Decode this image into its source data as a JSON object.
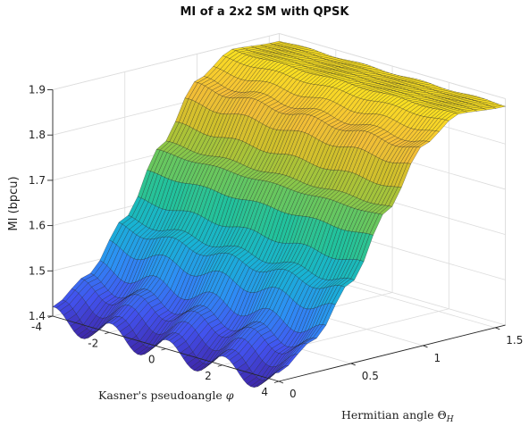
{
  "chart_data": {
    "type": "surface",
    "title": "MI of a 2x2 SM with QPSK",
    "xlabel_main": "Kasner's pseudoangle ",
    "xlabel_symbol": "φ",
    "ylabel_main": "Hermitian angle ",
    "ylabel_symbol": "Θ",
    "ylabel_sub": "H",
    "zlabel": "MI (bpcu)",
    "x_ticks": [
      "-4",
      "-2",
      "0",
      "2",
      "4"
    ],
    "y_ticks": [
      "0",
      "0.5",
      "1",
      "1.5"
    ],
    "z_ticks": [
      "1.4",
      "1.5",
      "1.6",
      "1.7",
      "1.8",
      "1.9"
    ],
    "xlim": [
      -4,
      4
    ],
    "ylim": [
      0,
      1.57
    ],
    "zlim": [
      1.4,
      1.9
    ],
    "colormap": [
      "#3e26a8",
      "#4253ef",
      "#2d8ff5",
      "#18b2d4",
      "#1ec2a0",
      "#72c856",
      "#c8c129",
      "#f5be37",
      "#f9e31e"
    ],
    "surface_samples": {
      "theta": [
        0,
        0.25,
        0.5,
        0.75,
        1.0,
        1.25,
        1.57
      ],
      "mi_at_phi_peak": [
        1.42,
        1.47,
        1.58,
        1.72,
        1.84,
        1.89,
        1.885
      ],
      "mi_at_phi_valley": [
        1.37,
        1.44,
        1.56,
        1.71,
        1.83,
        1.89,
        1.885
      ]
    },
    "grid": true
  }
}
